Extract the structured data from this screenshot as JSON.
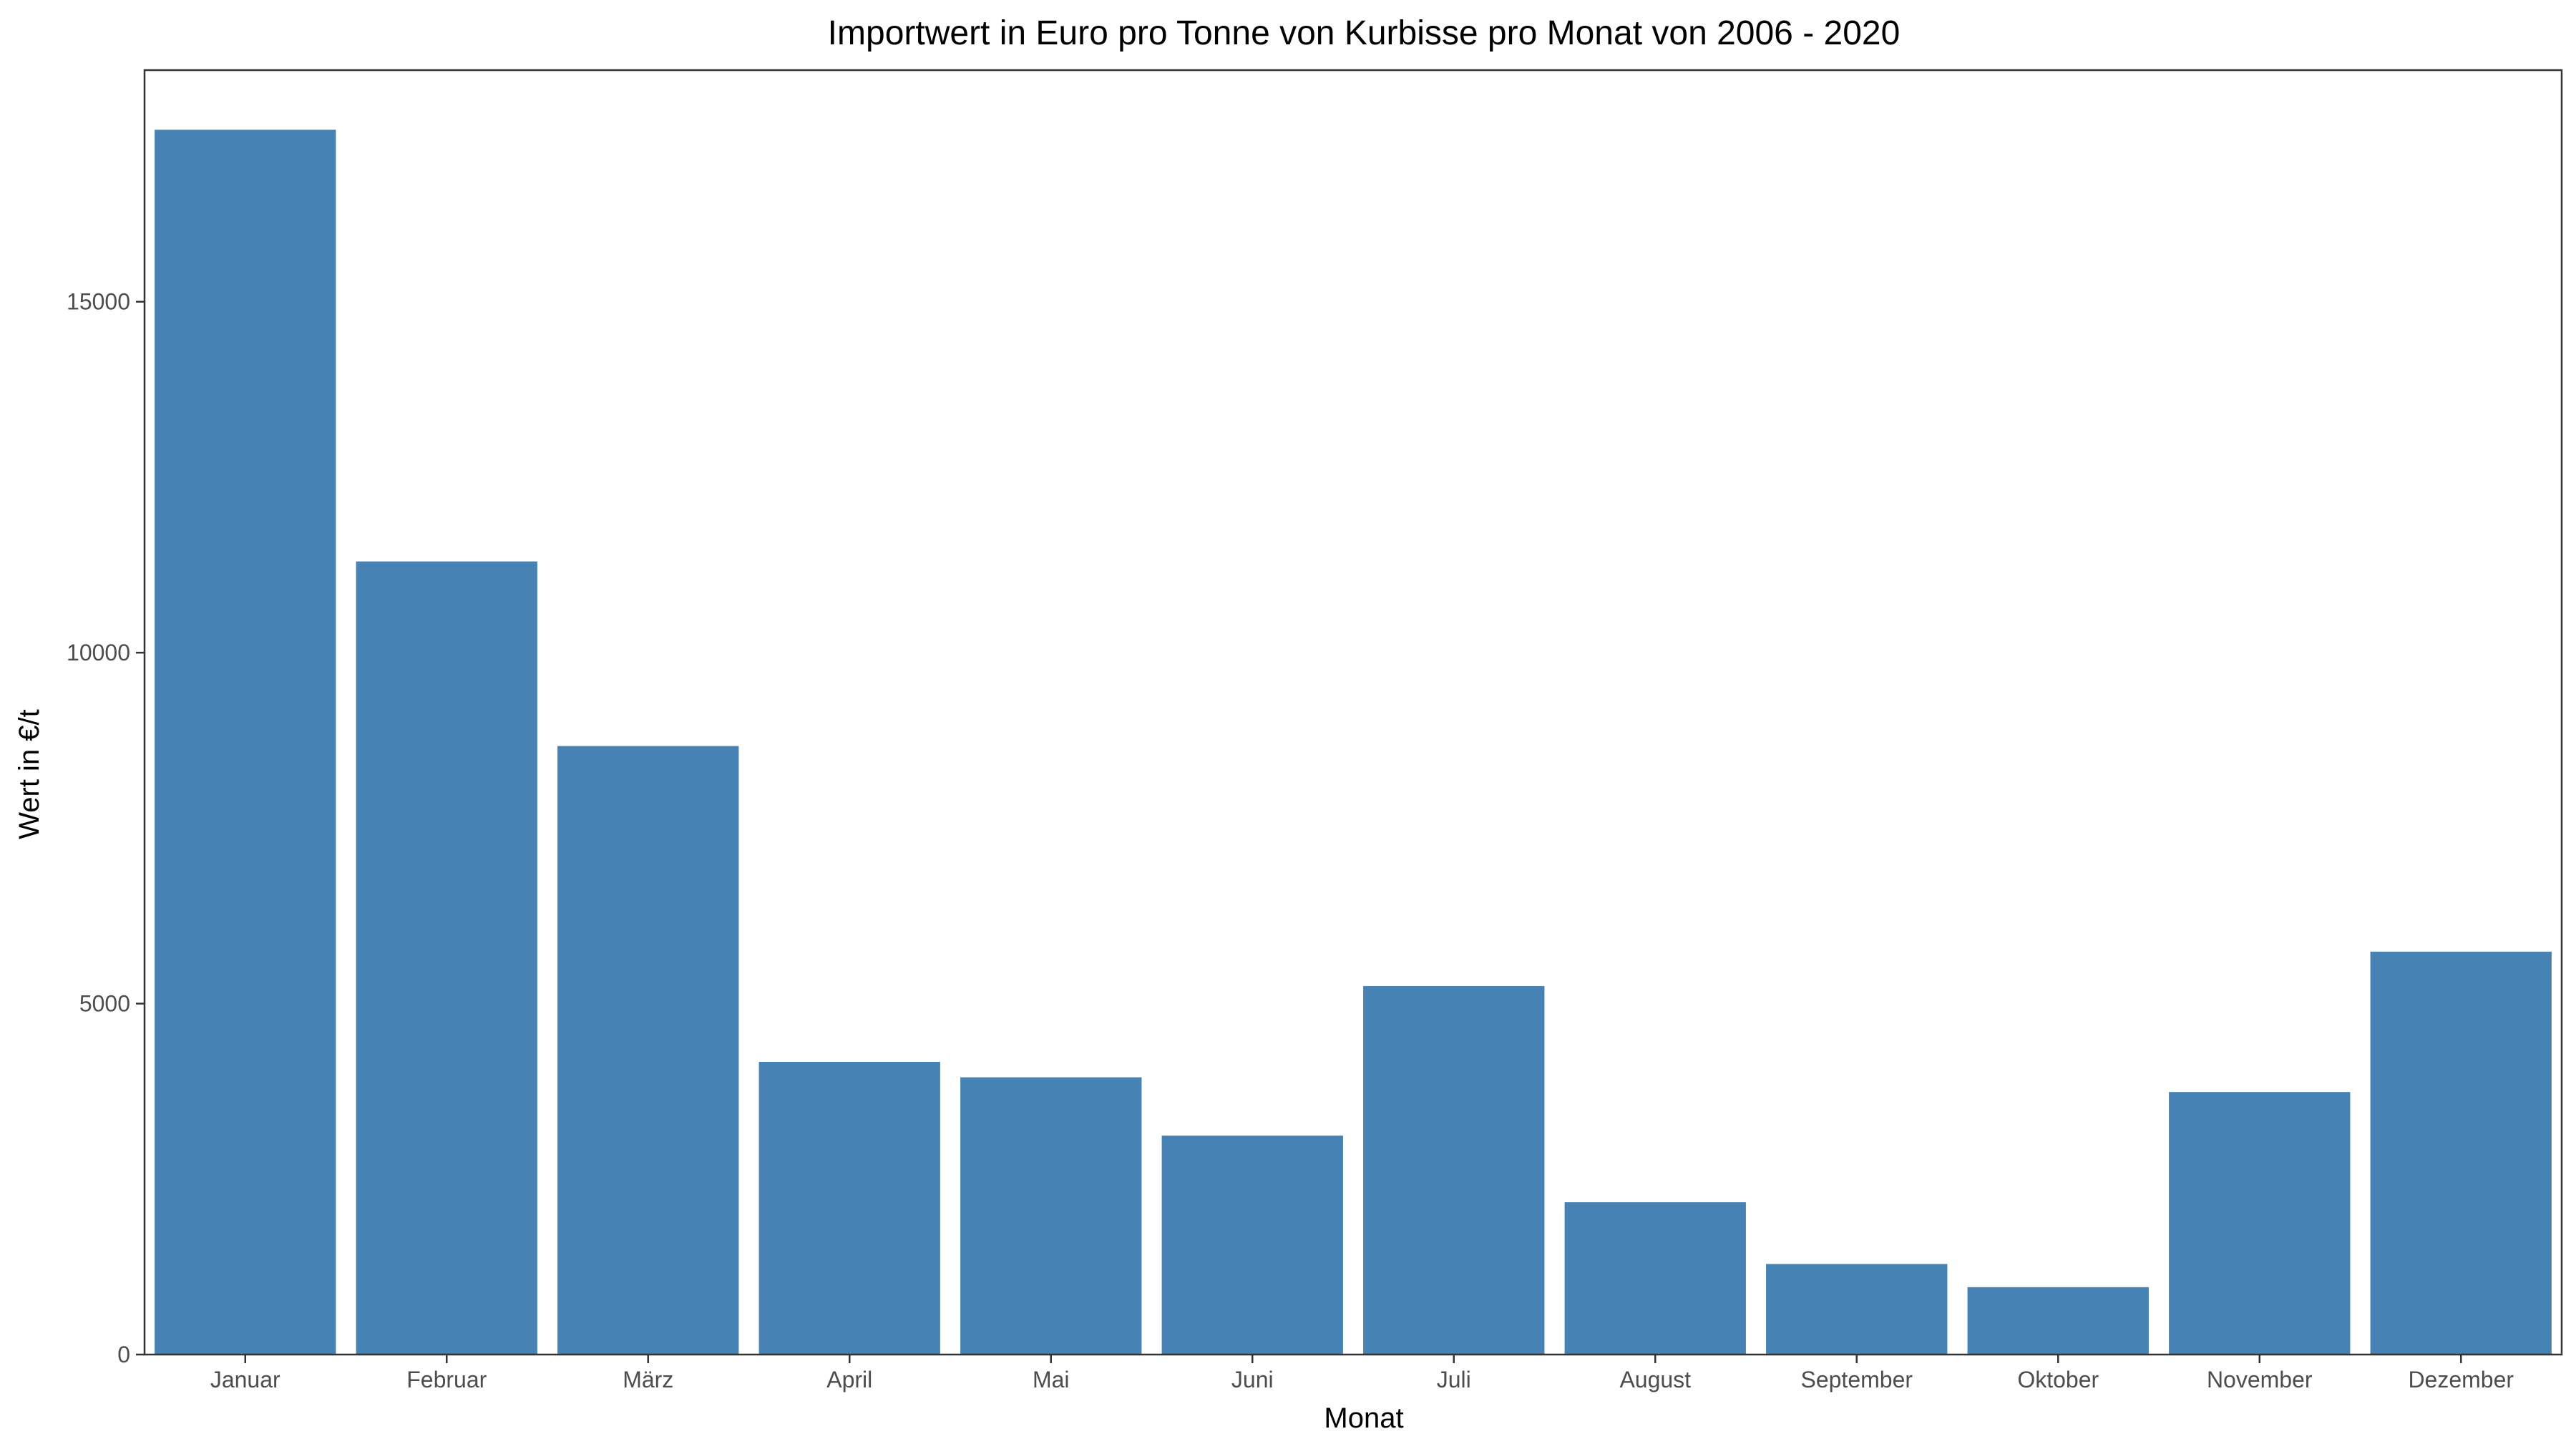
{
  "chart_data": {
    "type": "bar",
    "title": "Importwert in Euro pro Tonne von Kurbisse pro Monat von 2006 - 2020",
    "xlabel": "Monat",
    "ylabel": "Wert in €/t",
    "categories": [
      "Januar",
      "Februar",
      "März",
      "April",
      "Mai",
      "Juni",
      "Juli",
      "August",
      "September",
      "Oktober",
      "November",
      "Dezember"
    ],
    "values": [
      17450,
      11300,
      8670,
      4170,
      3950,
      3120,
      5250,
      2170,
      1290,
      960,
      3740,
      5740
    ],
    "ylim": [
      0,
      18300
    ],
    "yticks": [
      0,
      5000,
      10000,
      15000
    ],
    "bar_color": "#4682B4",
    "grid": false,
    "legend": "none"
  }
}
